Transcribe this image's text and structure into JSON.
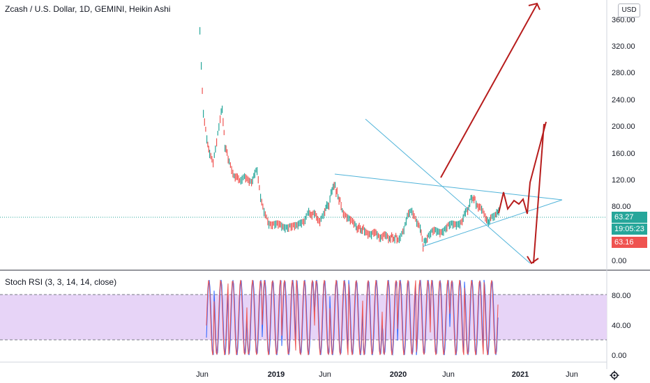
{
  "header": {
    "title": "Zcash / U.S. Dollar, 1D, GEMINI, Heikin Ashi",
    "currency_button": "USD"
  },
  "price_axis": {
    "ticks": [
      "360.00",
      "320.00",
      "280.00",
      "240.00",
      "200.00",
      "160.00",
      "120.00",
      "80.00",
      "0.00"
    ]
  },
  "price_tags": {
    "last_price": "63.27",
    "countdown": "19:05:23",
    "prev_close": "63.16",
    "colors": {
      "last_price": "#26a69a",
      "countdown": "#26a69a",
      "prev_close": "#ef5350"
    }
  },
  "indicator": {
    "label": "Stoch RSI (3, 3, 14, 14, close)",
    "ticks": [
      "80.00",
      "40.00",
      "0.00"
    ],
    "band_color": "#e1c6f5"
  },
  "time_axis": {
    "ticks": [
      "Jun",
      "2019",
      "Jun",
      "2020",
      "Jun",
      "2021",
      "Jun"
    ]
  },
  "icons": {
    "settings": "gear-icon"
  },
  "colors": {
    "drawing_red": "#b71c1c",
    "trendline_blue": "#4fb3d9",
    "up": "#26a69a",
    "down": "#ef5350"
  }
}
